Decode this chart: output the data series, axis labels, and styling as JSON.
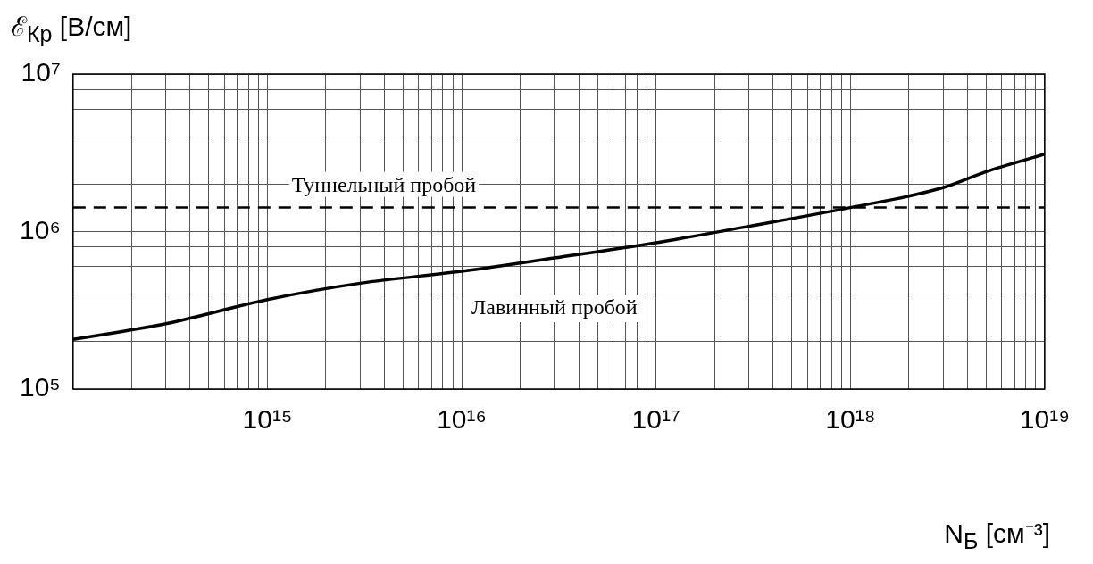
{
  "chart_data": {
    "type": "line",
    "xlabel": "N$_{Б}$ [см⁻³]",
    "ylabel": "ℰ$_{Кр}$ [В/см]",
    "x": [
      100000000000000.0,
      300000000000000.0,
      1000000000000000.0,
      3000000000000000.0,
      1e+16,
      3e+16,
      1e+17,
      3e+17,
      1e+18,
      3e+18,
      5e+18,
      1e+19
    ],
    "series": [
      {
        "name": "Лавинный пробой",
        "color": "#000000",
        "values": [
          207000,
          260000,
          370000,
          470000,
          560000,
          680000,
          850000,
          1080000,
          1420000,
          1900000,
          2400000,
          3100000
        ]
      }
    ],
    "log": "xy",
    "xlim": [
      100000000000000.0,
      1e+19
    ],
    "ylim": [
      100000.0,
      10000000.0
    ],
    "xticks": [
      {
        "value": 100000000000000.0,
        "label": null
      },
      {
        "value": 200000000000000.0,
        "label": null
      },
      {
        "value": 300000000000000.0,
        "label": null
      },
      {
        "value": 400000000000000.0,
        "label": null
      },
      {
        "value": 500000000000000.0,
        "label": null
      },
      {
        "value": 600000000000000.0,
        "label": null
      },
      {
        "value": 700000000000000.0,
        "label": null
      },
      {
        "value": 800000000000000.0,
        "label": null
      },
      {
        "value": 900000000000000.0,
        "label": null
      },
      {
        "value": 1000000000000000.0,
        "label": "10¹⁵"
      },
      {
        "value": 2000000000000000.0,
        "label": null
      },
      {
        "value": 3000000000000000.0,
        "label": null
      },
      {
        "value": 4000000000000000.0,
        "label": null
      },
      {
        "value": 5000000000000000.0,
        "label": null
      },
      {
        "value": 6000000000000000.0,
        "label": null
      },
      {
        "value": 7000000000000000.0,
        "label": null
      },
      {
        "value": 8000000000000000.0,
        "label": null
      },
      {
        "value": 9000000000000000.0,
        "label": null
      },
      {
        "value": 1e+16,
        "label": "10¹⁶"
      },
      {
        "value": 2e+16,
        "label": null
      },
      {
        "value": 3e+16,
        "label": null
      },
      {
        "value": 4e+16,
        "label": null
      },
      {
        "value": 5e+16,
        "label": null
      },
      {
        "value": 6e+16,
        "label": null
      },
      {
        "value": 7e+16,
        "label": null
      },
      {
        "value": 8e+16,
        "label": null
      },
      {
        "value": 9e+16,
        "label": null
      },
      {
        "value": 1e+17,
        "label": "10¹⁷"
      },
      {
        "value": 2e+17,
        "label": null
      },
      {
        "value": 3e+17,
        "label": null
      },
      {
        "value": 4e+17,
        "label": null
      },
      {
        "value": 5e+17,
        "label": null
      },
      {
        "value": 6e+17,
        "label": null
      },
      {
        "value": 7e+17,
        "label": null
      },
      {
        "value": 8e+17,
        "label": null
      },
      {
        "value": 9e+17,
        "label": null
      },
      {
        "value": 1e+18,
        "label": "10¹⁸"
      },
      {
        "value": 2e+18,
        "label": null
      },
      {
        "value": 3e+18,
        "label": null
      },
      {
        "value": 4e+18,
        "label": null
      },
      {
        "value": 5e+18,
        "label": null
      },
      {
        "value": 6e+18,
        "label": null
      },
      {
        "value": 7e+18,
        "label": null
      },
      {
        "value": 8e+18,
        "label": null
      },
      {
        "value": 9e+18,
        "label": null
      },
      {
        "value": 1e+19,
        "label": "10¹⁹"
      }
    ],
    "yticks": [
      {
        "value": 100000.0,
        "label": "10⁵"
      },
      {
        "value": 200000.0,
        "label": null
      },
      {
        "value": 400000.0,
        "label": null
      },
      {
        "value": 600000.0,
        "label": null
      },
      {
        "value": 800000.0,
        "label": null
      },
      {
        "value": 1000000.0,
        "label": "10⁶"
      },
      {
        "value": 2000000.0,
        "label": null
      },
      {
        "value": 4000000.0,
        "label": null
      },
      {
        "value": 6000000.0,
        "label": null
      },
      {
        "value": 8000000.0,
        "label": null
      },
      {
        "value": 10000000.0,
        "label": "10⁷"
      }
    ],
    "grid": true,
    "legend": false,
    "marker": "none",
    "line_style": "solid",
    "ref_lines": [
      {
        "axis": "y",
        "value": 1420000,
        "label": "Туннельный пробой",
        "line_style": "dashed",
        "color": "#000000"
      }
    ]
  }
}
